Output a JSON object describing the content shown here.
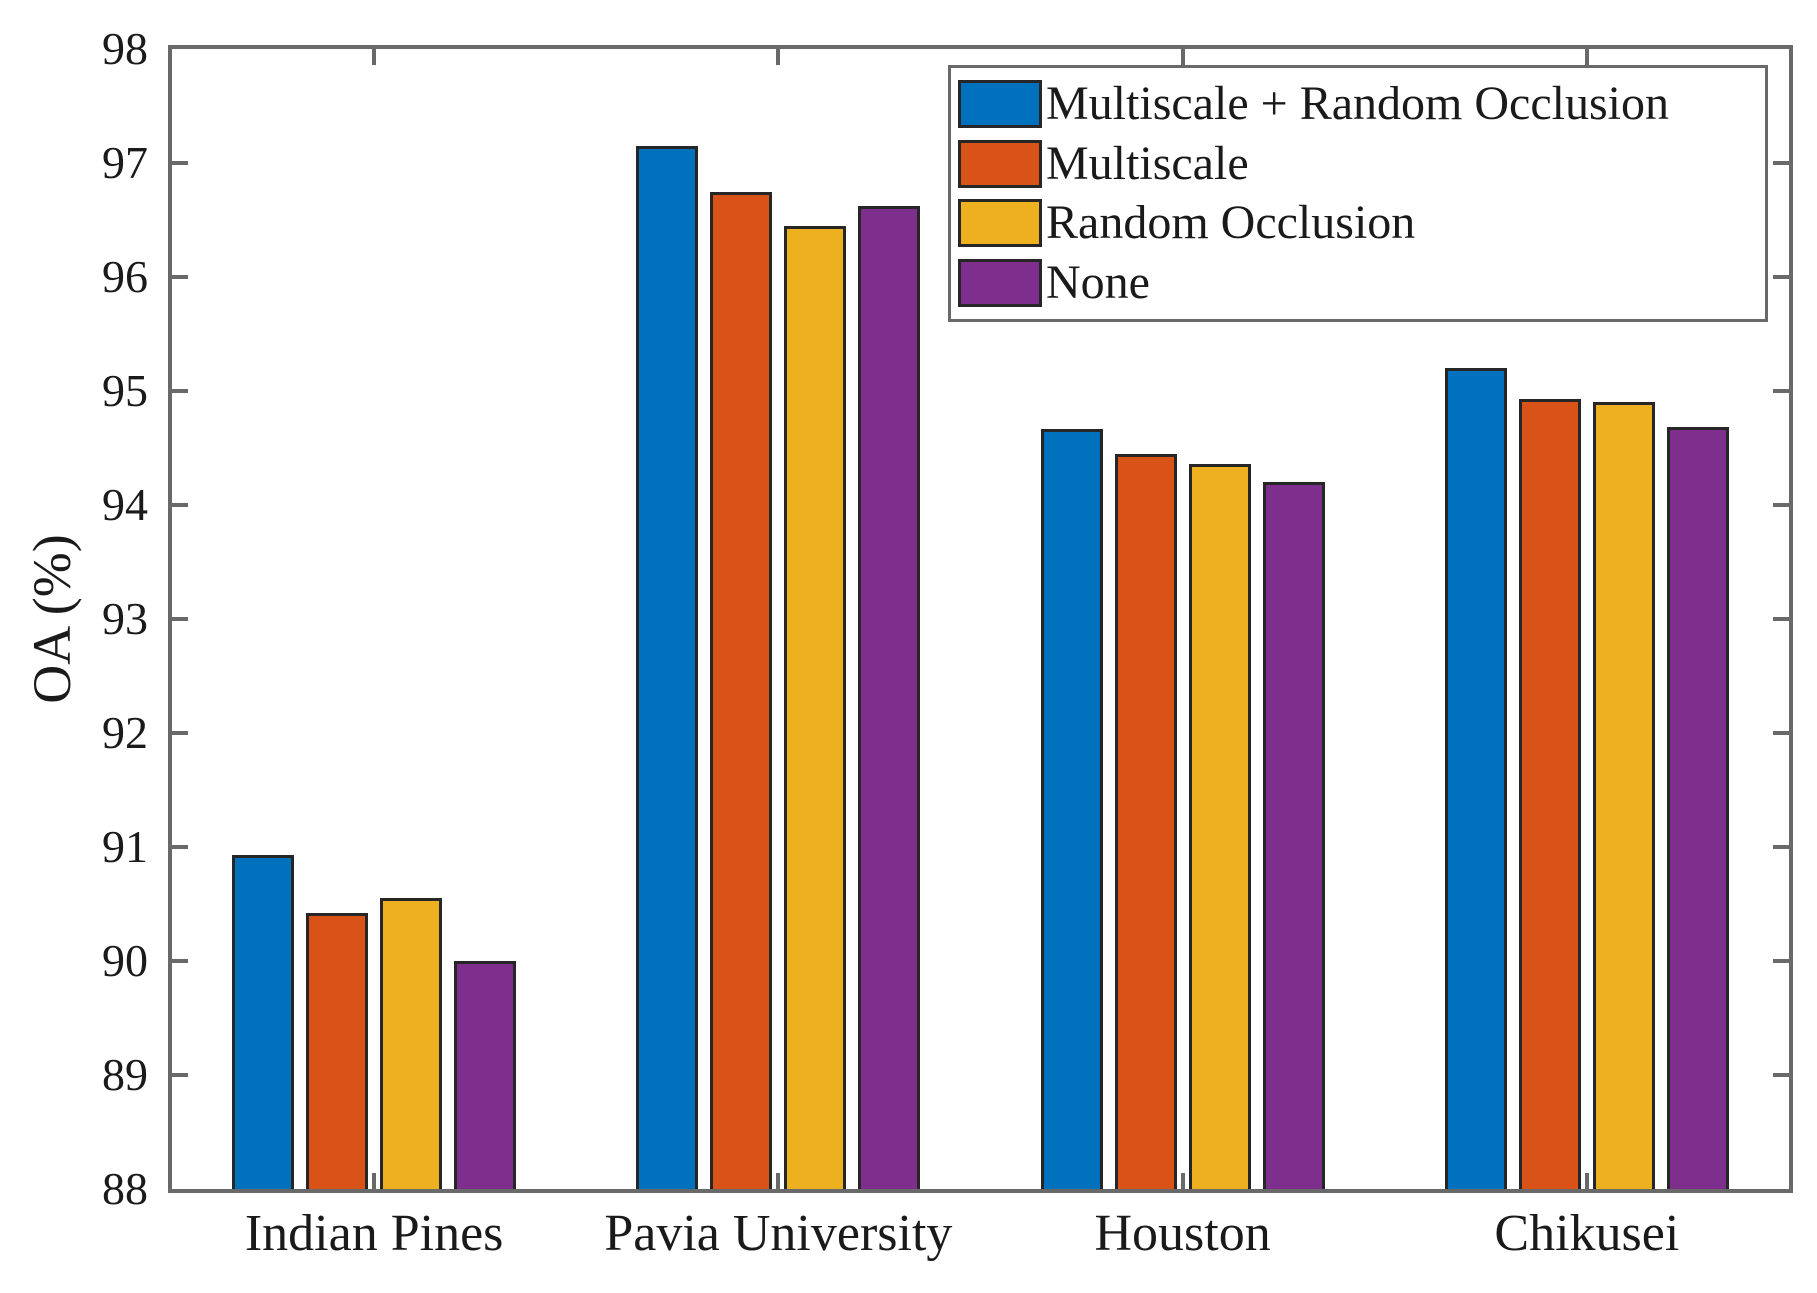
{
  "chart_data": {
    "type": "bar",
    "title": "",
    "xlabel": "",
    "ylabel": "OA (%)",
    "ylim": [
      88,
      98
    ],
    "yticks": [
      88,
      89,
      90,
      91,
      92,
      93,
      94,
      95,
      96,
      97,
      98
    ],
    "grid": false,
    "legend_position": "top-right",
    "categories": [
      "Indian Pines",
      "Pavia University",
      "Houston",
      "Chikusei"
    ],
    "series": [
      {
        "name": "Multiscale + Random Occlusion",
        "color": "#0072BD",
        "values": [
          90.93,
          97.15,
          94.67,
          95.2
        ]
      },
      {
        "name": "Multiscale",
        "color": "#D95319",
        "values": [
          90.42,
          96.75,
          94.45,
          94.93
        ]
      },
      {
        "name": "Random Occlusion",
        "color": "#EDB120",
        "values": [
          90.55,
          96.45,
          94.36,
          94.9
        ]
      },
      {
        "name": "None",
        "color": "#7E2F8E",
        "values": [
          90.0,
          96.62,
          94.2,
          94.68
        ]
      }
    ]
  },
  "styles": {
    "axis_color": "#696969",
    "bar_edge_color": "#262626",
    "text_color": "#1a1a1a",
    "background": "#ffffff"
  }
}
